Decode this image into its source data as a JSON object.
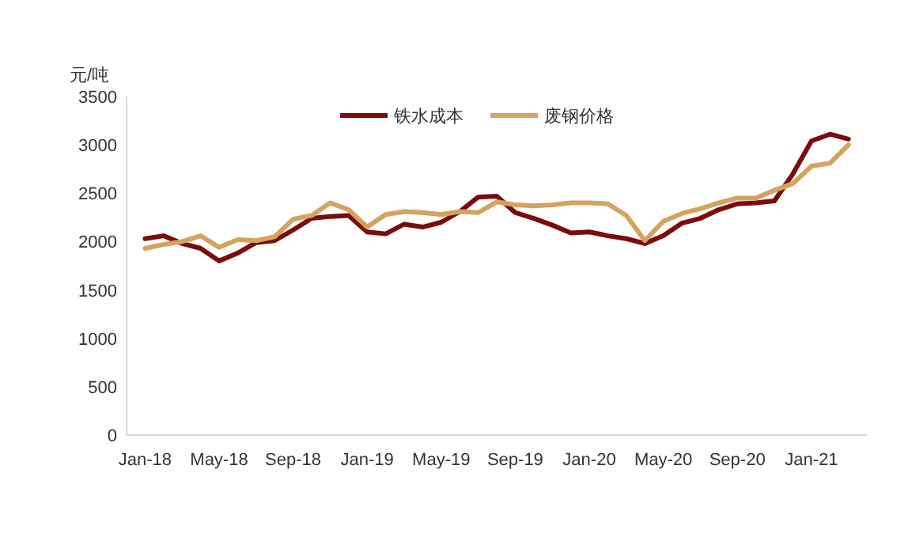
{
  "chart_data": {
    "type": "line",
    "ylabel": "元/吨",
    "legend": "top",
    "x": [
      "2018-01",
      "2018-02",
      "2018-03",
      "2018-04",
      "2018-05",
      "2018-06",
      "2018-07",
      "2018-08",
      "2018-09",
      "2018-10",
      "2018-11",
      "2018-12",
      "2019-01",
      "2019-02",
      "2019-03",
      "2019-04",
      "2019-05",
      "2019-06",
      "2019-07",
      "2019-08",
      "2019-09",
      "2019-10",
      "2019-11",
      "2019-12",
      "2020-01",
      "2020-02",
      "2020-03",
      "2020-04",
      "2020-05",
      "2020-06",
      "2020-07",
      "2020-08",
      "2020-09",
      "2020-10",
      "2020-11",
      "2020-12",
      "2021-01",
      "2021-02",
      "2021-03"
    ],
    "xlim": [
      "2017-12",
      "2021-04"
    ],
    "xticks": [
      {
        "value": "2018-01",
        "label": "Jan-18"
      },
      {
        "value": "2018-05",
        "label": "May-18"
      },
      {
        "value": "2018-09",
        "label": "Sep-18"
      },
      {
        "value": "2019-01",
        "label": "Jan-19"
      },
      {
        "value": "2019-05",
        "label": "May-19"
      },
      {
        "value": "2019-09",
        "label": "Sep-19"
      },
      {
        "value": "2020-01",
        "label": "Jan-20"
      },
      {
        "value": "2020-05",
        "label": "May-20"
      },
      {
        "value": "2020-09",
        "label": "Sep-20"
      },
      {
        "value": "2021-01",
        "label": "Jan-21"
      }
    ],
    "ylim": [
      0,
      3500
    ],
    "yticks": [
      0,
      500,
      1000,
      1500,
      2000,
      2500,
      3000,
      3500
    ],
    "series": [
      {
        "name": "铁水成本",
        "color": "#7b0c0c",
        "values": [
          2030,
          2060,
          1980,
          1930,
          1800,
          1880,
          1990,
          2010,
          2120,
          2240,
          2260,
          2270,
          2100,
          2080,
          2180,
          2150,
          2200,
          2310,
          2460,
          2470,
          2300,
          2240,
          2170,
          2090,
          2100,
          2060,
          2030,
          1980,
          2060,
          2190,
          2240,
          2330,
          2390,
          2400,
          2420,
          2700,
          3040,
          3110,
          3060
        ]
      },
      {
        "name": "废钢价格",
        "color": "#d4a35f",
        "values": [
          1930,
          1970,
          2000,
          2060,
          1940,
          2020,
          2010,
          2050,
          2230,
          2270,
          2400,
          2330,
          2150,
          2280,
          2310,
          2300,
          2280,
          2310,
          2300,
          2410,
          2380,
          2370,
          2380,
          2400,
          2400,
          2390,
          2270,
          2010,
          2210,
          2290,
          2340,
          2400,
          2450,
          2450,
          2530,
          2600,
          2780,
          2810,
          3000
        ]
      }
    ]
  }
}
